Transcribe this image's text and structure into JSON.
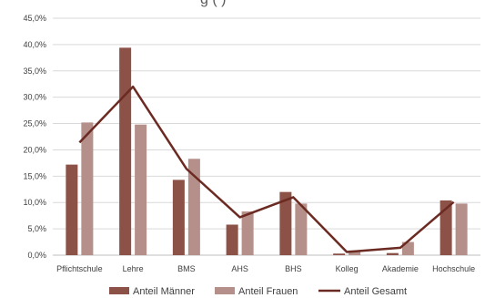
{
  "chart_data": {
    "type": "bar",
    "title": "",
    "title_fragment": "g          (                  )",
    "categories": [
      "Pflichtschule",
      "Lehre",
      "BMS",
      "AHS",
      "BHS",
      "Kolleg",
      "Akademie",
      "Hochschule"
    ],
    "series": [
      {
        "name": "Anteil Männer",
        "kind": "bar",
        "color": "#8C5147",
        "values": [
          17.2,
          39.4,
          14.3,
          5.8,
          12.0,
          0.3,
          0.4,
          10.4
        ]
      },
      {
        "name": "Anteil Frauen",
        "kind": "bar",
        "color": "#B58F89",
        "values": [
          25.2,
          24.8,
          18.3,
          8.3,
          9.8,
          0.9,
          2.5,
          9.8
        ]
      },
      {
        "name": "Anteil Gesamt",
        "kind": "line",
        "color": "#6B2A22",
        "values": [
          21.4,
          32.0,
          16.4,
          7.2,
          11.0,
          0.6,
          1.4,
          10.1
        ]
      }
    ],
    "yticks": [
      "0,0%",
      "5,0%",
      "10,0%",
      "15,0%",
      "20,0%",
      "25,0%",
      "30,0%",
      "35,0%",
      "40,0%",
      "45,0%"
    ],
    "ylim": [
      0,
      45
    ],
    "grid": true,
    "legend_position": "bottom"
  }
}
